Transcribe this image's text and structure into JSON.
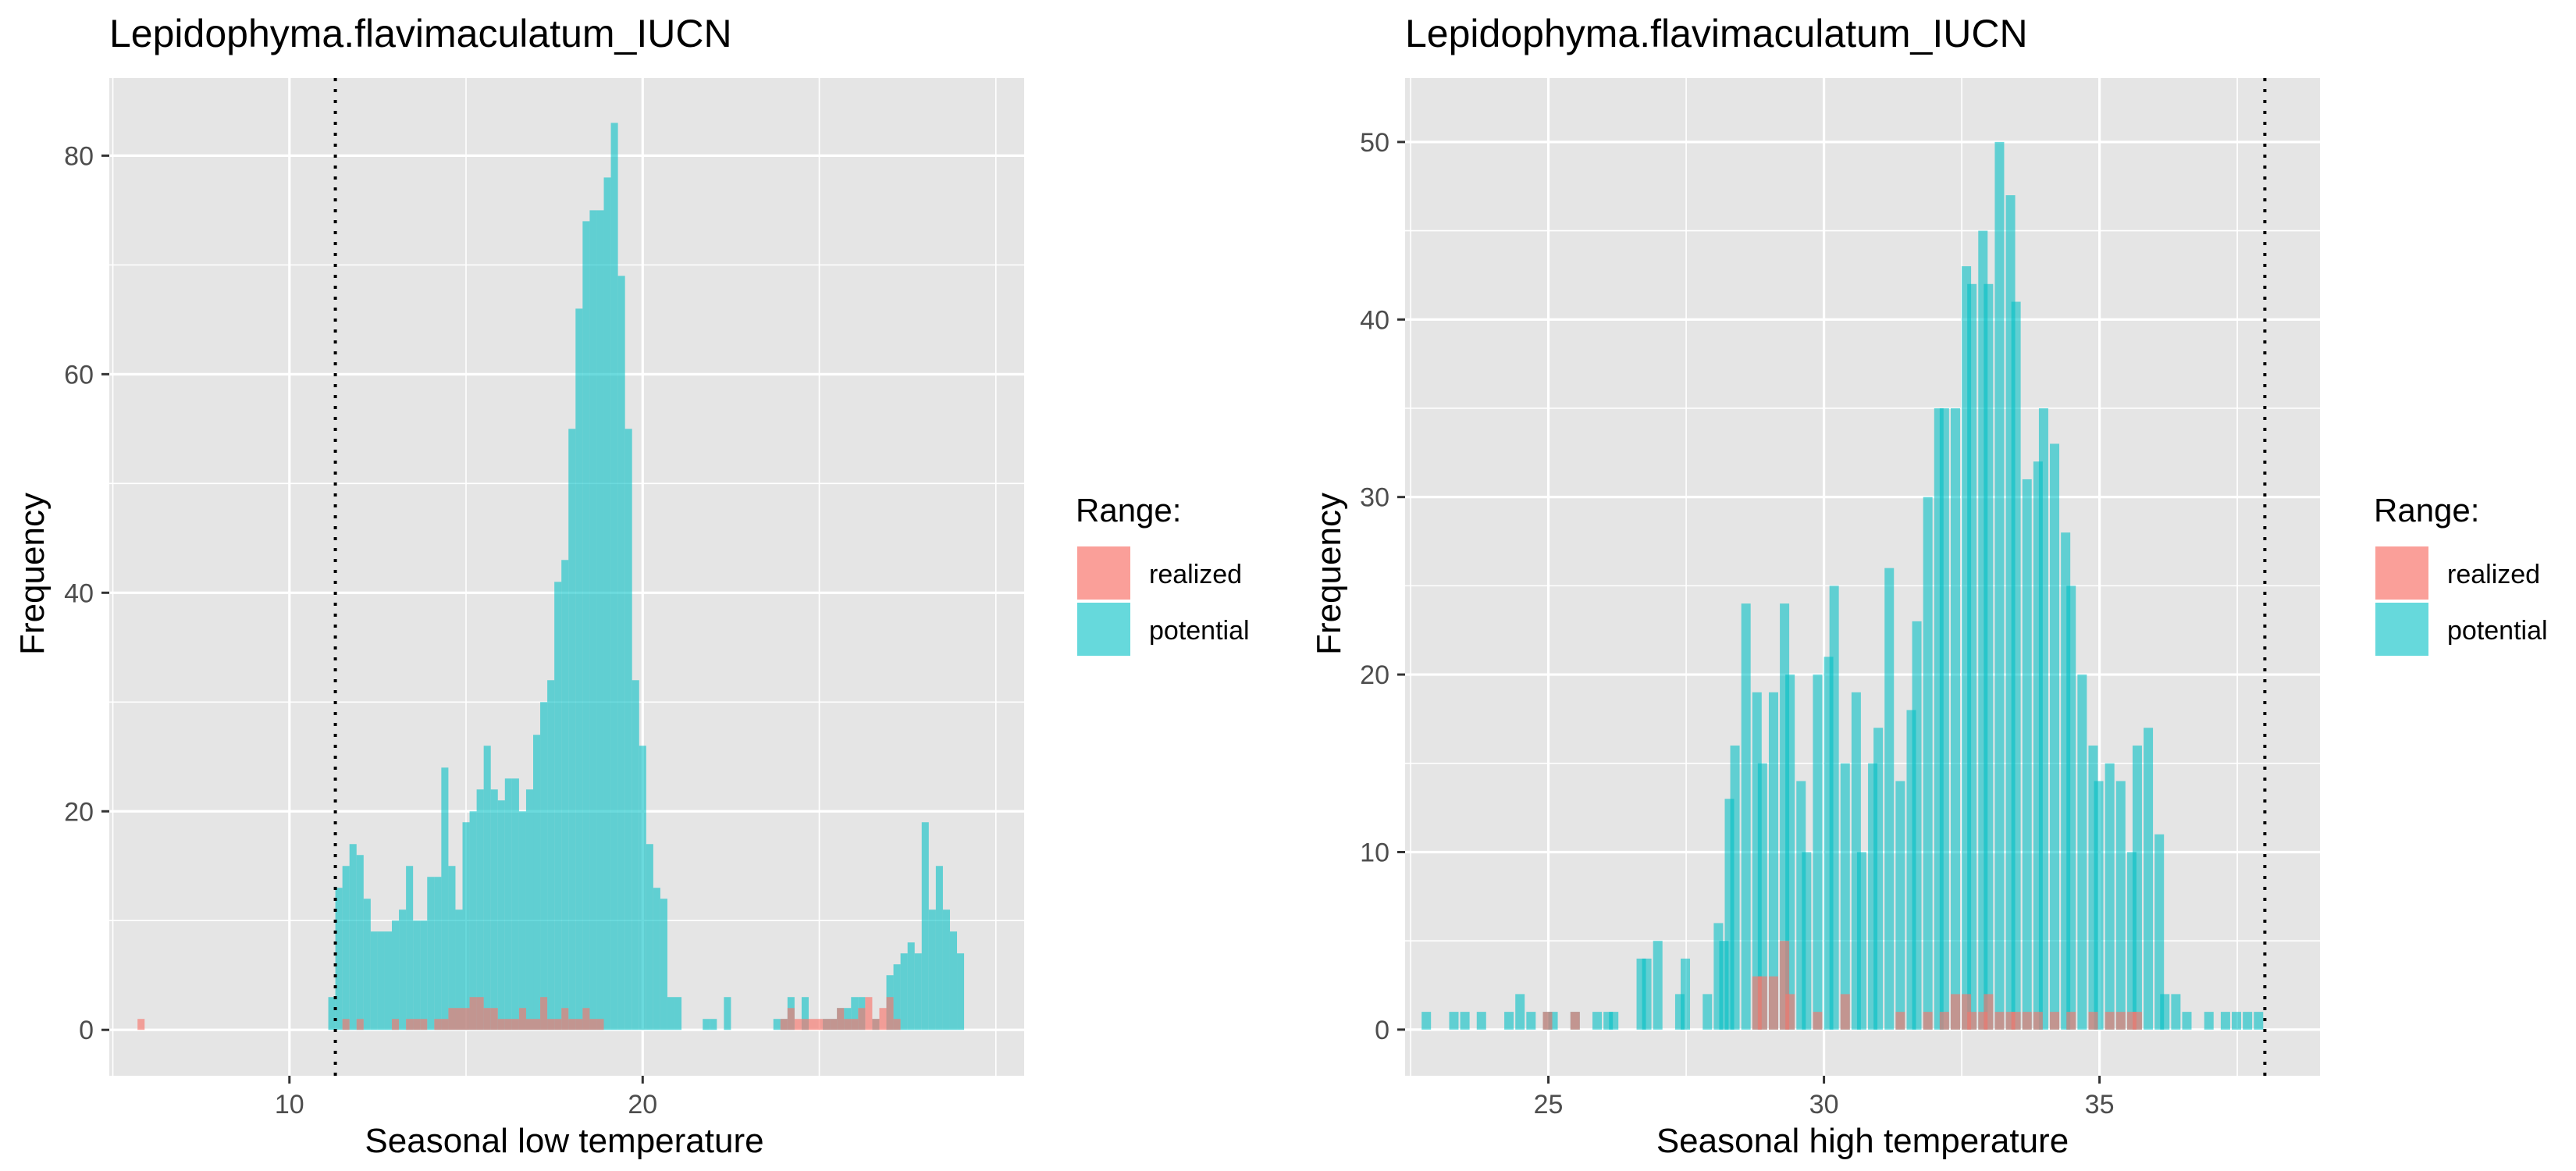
{
  "colors": {
    "realized": "#F8766D",
    "potential": "#00BFC4",
    "panel_bg": "#E5E5E5",
    "grid": "#FFFFFF"
  },
  "chart_data": [
    {
      "type": "histogram",
      "title": "Lepidophyma.flavimaculatum_IUCN",
      "xlabel": "Seasonal low temperature",
      "ylabel": "Frequency",
      "xlim": [
        4.9,
        30.8
      ],
      "ylim": [
        -4.2,
        87.1
      ],
      "xticks": [
        10,
        20
      ],
      "yticks": [
        0,
        20,
        40,
        60,
        80
      ],
      "bin_width": 0.2,
      "vline": 11.3,
      "legend": {
        "title": "Range:",
        "position": "right",
        "entries": [
          "realized",
          "potential"
        ]
      },
      "series": [
        {
          "name": "potential",
          "bin_starts": [
            11.1,
            11.3,
            11.5,
            11.7,
            11.9,
            12.1,
            12.3,
            12.5,
            12.7,
            12.9,
            13.1,
            13.3,
            13.5,
            13.7,
            13.9,
            14.1,
            14.3,
            14.5,
            14.7,
            14.9,
            15.1,
            15.3,
            15.5,
            15.7,
            15.9,
            16.1,
            16.3,
            16.5,
            16.7,
            16.9,
            17.1,
            17.3,
            17.5,
            17.7,
            17.9,
            18.1,
            18.3,
            18.5,
            18.7,
            18.9,
            19.1,
            19.3,
            19.5,
            19.7,
            19.9,
            20.1,
            20.3,
            20.5,
            20.7,
            20.9,
            21.1,
            21.3,
            21.5,
            21.7,
            21.9,
            22.1,
            22.3,
            22.5,
            22.7,
            22.9,
            23.1,
            23.3,
            23.5,
            23.7,
            23.9,
            24.1,
            24.3,
            24.5,
            24.7,
            24.9,
            25.1,
            25.3,
            25.5,
            25.7,
            25.9,
            26.1,
            26.3,
            26.5,
            26.7,
            26.9,
            27.1,
            27.3,
            27.5,
            27.7,
            27.9,
            28.1,
            28.3,
            28.5,
            28.7,
            28.9
          ],
          "counts": [
            3,
            13,
            15,
            17,
            16,
            12,
            9,
            9,
            9,
            10,
            11,
            15,
            10,
            10,
            14,
            14,
            24,
            15,
            11,
            19,
            20,
            22,
            26,
            22,
            21,
            23,
            23,
            20,
            22,
            27,
            30,
            32,
            41,
            43,
            55,
            66,
            74,
            75,
            75,
            78,
            83,
            69,
            55,
            32,
            26,
            17,
            13,
            12,
            3,
            3,
            0,
            0,
            0,
            1,
            1,
            0,
            3,
            0,
            0,
            0,
            0,
            0,
            0,
            1,
            1,
            3,
            0,
            3,
            0,
            0,
            1,
            1,
            2,
            2,
            3,
            3,
            0,
            1,
            0,
            5,
            6,
            7,
            8,
            7,
            19,
            11,
            15,
            11,
            9,
            7,
            3,
            6,
            7,
            8,
            1
          ]
        },
        {
          "name": "realized",
          "bin_starts": [
            5.7,
            11.5,
            11.9,
            12.9,
            13.3,
            13.5,
            13.7,
            14.1,
            14.3,
            14.5,
            14.7,
            14.9,
            15.1,
            15.3,
            15.5,
            15.7,
            15.9,
            16.1,
            16.3,
            16.5,
            16.7,
            16.9,
            17.1,
            17.3,
            17.5,
            17.7,
            17.9,
            18.1,
            18.3,
            18.5,
            18.7,
            23.9,
            24.1,
            24.3,
            24.5,
            24.7,
            24.9,
            25.1,
            25.3,
            25.5,
            25.7,
            25.9,
            26.1,
            26.3,
            26.5,
            26.7,
            26.9,
            27.1
          ],
          "counts": [
            1,
            1,
            1,
            1,
            1,
            1,
            1,
            1,
            1,
            2,
            2,
            2,
            3,
            3,
            2,
            2,
            1,
            1,
            1,
            2,
            1,
            1,
            3,
            1,
            1,
            2,
            1,
            1,
            2,
            1,
            1,
            1,
            2,
            1,
            1,
            1,
            1,
            1,
            1,
            2,
            1,
            1,
            2,
            3,
            1,
            2,
            3,
            1
          ]
        }
      ]
    },
    {
      "type": "histogram",
      "title": "Lepidophyma.flavimaculatum_IUCN",
      "xlabel": "Seasonal high temperature",
      "ylabel": "Frequency",
      "xlim": [
        22.4,
        39.0
      ],
      "ylim": [
        -2.6,
        53.6
      ],
      "xticks": [
        25,
        30,
        35
      ],
      "yticks": [
        0,
        10,
        20,
        30,
        40,
        50
      ],
      "bin_width": 0.17,
      "vline": 38.0,
      "legend": {
        "title": "Range:",
        "position": "right",
        "entries": [
          "realized",
          "potential"
        ]
      },
      "series": [
        {
          "name": "potential",
          "bin_starts": [
            22.7,
            23.2,
            23.4,
            23.7,
            24.2,
            24.4,
            24.6,
            24.9,
            25.0,
            25.4,
            25.8,
            26.0,
            26.1,
            26.6,
            26.7,
            26.9,
            27.3,
            27.4,
            27.8,
            28.0,
            28.1,
            28.2,
            28.3,
            28.5,
            28.7,
            28.8,
            29.0,
            29.2,
            29.3,
            29.5,
            29.6,
            29.8,
            30.0,
            30.1,
            30.3,
            30.5,
            30.6,
            30.8,
            30.9,
            31.1,
            31.3,
            31.5,
            31.6,
            31.8,
            32.0,
            32.1,
            32.3,
            32.5,
            32.6,
            32.8,
            32.9,
            33.1,
            33.3,
            33.4,
            33.6,
            33.8,
            33.9,
            34.1,
            34.3,
            34.4,
            34.6,
            34.8,
            34.9,
            35.1,
            35.3,
            35.5,
            35.6,
            35.8,
            36.0,
            36.1,
            36.3,
            36.5,
            36.9,
            37.2,
            37.4,
            37.6,
            37.8
          ],
          "counts": [
            1,
            1,
            1,
            1,
            1,
            2,
            1,
            1,
            1,
            1,
            1,
            1,
            1,
            4,
            4,
            5,
            2,
            4,
            2,
            6,
            5,
            13,
            16,
            24,
            19,
            15,
            19,
            24,
            20,
            14,
            10,
            20,
            21,
            25,
            15,
            19,
            10,
            15,
            17,
            26,
            14,
            18,
            23,
            30,
            35,
            35,
            35,
            43,
            42,
            45,
            42,
            50,
            47,
            41,
            31,
            32,
            35,
            33,
            28,
            25,
            20,
            16,
            14,
            15,
            14,
            10,
            16,
            17,
            11,
            2,
            2,
            1,
            1,
            1,
            1,
            1,
            1
          ]
        },
        {
          "name": "realized",
          "bin_starts": [
            24.9,
            25.4,
            28.7,
            28.8,
            29.0,
            29.2,
            29.3,
            29.8,
            30.3,
            31.3,
            31.8,
            32.1,
            32.3,
            32.5,
            32.6,
            32.8,
            32.9,
            33.1,
            33.3,
            33.4,
            33.6,
            33.8,
            34.1,
            34.4,
            34.8,
            35.1,
            35.3,
            35.5,
            35.6
          ],
          "counts": [
            1,
            1,
            3,
            3,
            3,
            5,
            2,
            1,
            2,
            1,
            1,
            1,
            2,
            2,
            1,
            1,
            2,
            1,
            1,
            1,
            1,
            1,
            1,
            1,
            1,
            1,
            1,
            1,
            1
          ]
        }
      ]
    }
  ]
}
